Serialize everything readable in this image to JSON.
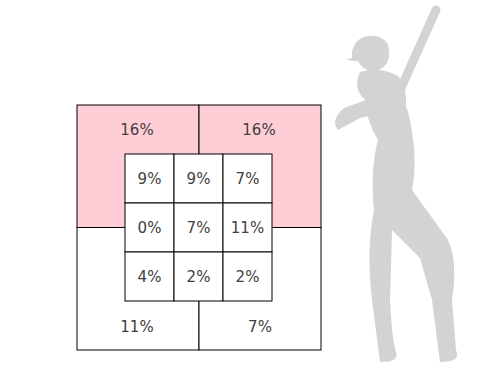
{
  "chart_data": {
    "type": "zone",
    "outer_values": [
      16,
      16,
      11,
      7
    ],
    "outer_value_labels": [
      "16%",
      "16%",
      "11%",
      "7%"
    ],
    "outer_colors": [
      "#ffcdd6",
      "#ffcdd6",
      "#ffffff",
      "#ffffff"
    ],
    "inner_values": [
      [
        9,
        9,
        7
      ],
      [
        0,
        7,
        11
      ],
      [
        4,
        2,
        2
      ]
    ],
    "inner_value_labels": [
      [
        "9%",
        "9%",
        "7%"
      ],
      [
        "0%",
        "7%",
        "11%"
      ],
      [
        "4%",
        "2%",
        "2%"
      ]
    ]
  }
}
